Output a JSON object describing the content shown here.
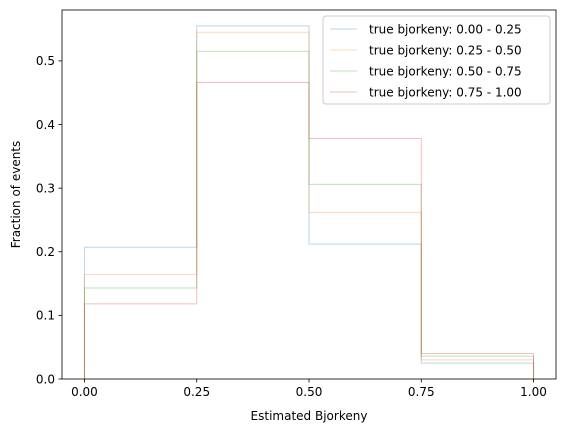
{
  "chart_data": {
    "type": "step",
    "xlabel": "Estimated Bjorkeny",
    "ylabel": "Fraction of events",
    "xlim": [
      -0.05,
      1.05
    ],
    "ylim": [
      0,
      0.58
    ],
    "xticks": [
      0.0,
      0.25,
      0.5,
      0.75,
      1.0
    ],
    "xtick_labels": [
      "0.00",
      "0.25",
      "0.50",
      "0.75",
      "1.00"
    ],
    "yticks": [
      0.0,
      0.1,
      0.2,
      0.3,
      0.4,
      0.5
    ],
    "ytick_labels": [
      "0.0",
      "0.1",
      "0.2",
      "0.3",
      "0.4",
      "0.5"
    ],
    "bin_edges": [
      0.0,
      0.25,
      0.5,
      0.75,
      1.0
    ],
    "legend_position": "top-right",
    "grid": false,
    "series": [
      {
        "name": "true bjorkeny: 0.00 - 0.25",
        "color": "#1f77b4",
        "values": [
          0.207,
          0.555,
          0.212,
          0.025
        ]
      },
      {
        "name": "true bjorkeny: 0.25 - 0.50",
        "color": "#ff7f0e",
        "values": [
          0.164,
          0.545,
          0.262,
          0.03
        ]
      },
      {
        "name": "true bjorkeny: 0.50 - 0.75",
        "color": "#2ca02c",
        "values": [
          0.143,
          0.515,
          0.306,
          0.036
        ]
      },
      {
        "name": "true bjorkeny: 0.75 - 1.00",
        "color": "#d62728",
        "values": [
          0.118,
          0.466,
          0.378,
          0.04
        ]
      }
    ]
  }
}
